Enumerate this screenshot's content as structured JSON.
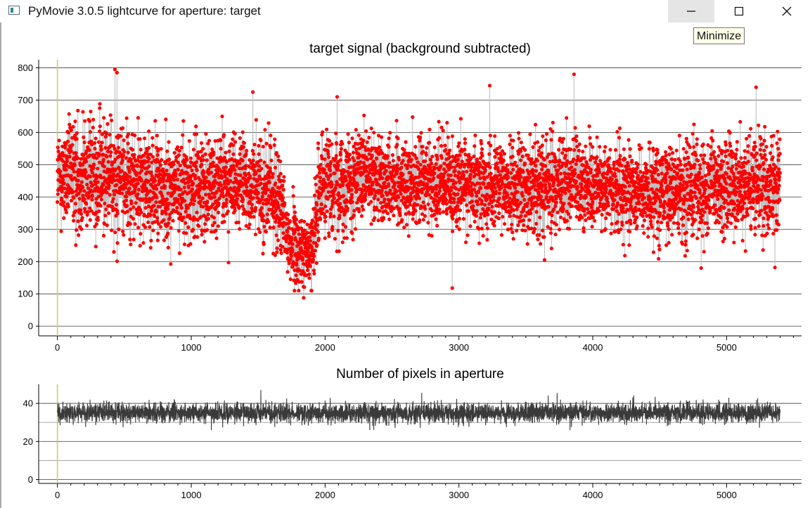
{
  "window": {
    "title": "PyMovie 3.0.5 lightcurve for aperture: target",
    "tooltip": "Minimize",
    "icons": [
      "app-icon",
      "minimize-icon",
      "maximize-icon",
      "close-icon"
    ]
  },
  "chart_data": [
    {
      "type": "scatter",
      "title": "target signal (background subtracted)",
      "xlabel": "",
      "ylabel": "",
      "xlim": [
        -140,
        5560
      ],
      "ylim": [
        -30,
        825
      ],
      "xticks": [
        0,
        1000,
        2000,
        3000,
        4000,
        5000
      ],
      "yticks": [
        0,
        100,
        200,
        300,
        400,
        500,
        600,
        700,
        800
      ],
      "grid": true,
      "n_points": 5400,
      "marker_color": "#ff0000",
      "line_color": "#bdbdbd",
      "profile": [
        [
          0,
          460,
          70
        ],
        [
          150,
          470,
          85
        ],
        [
          300,
          465,
          90
        ],
        [
          450,
          470,
          90
        ],
        [
          600,
          440,
          85
        ],
        [
          800,
          420,
          75
        ],
        [
          1000,
          430,
          75
        ],
        [
          1200,
          445,
          75
        ],
        [
          1400,
          440,
          70
        ],
        [
          1550,
          420,
          75
        ],
        [
          1650,
          400,
          85
        ],
        [
          1700,
          290,
          70
        ],
        [
          1800,
          225,
          55
        ],
        [
          1900,
          230,
          50
        ],
        [
          1950,
          430,
          75
        ],
        [
          2100,
          450,
          75
        ],
        [
          2400,
          460,
          70
        ],
        [
          2700,
          445,
          70
        ],
        [
          3000,
          445,
          70
        ],
        [
          3300,
          430,
          70
        ],
        [
          3600,
          435,
          70
        ],
        [
          3900,
          440,
          70
        ],
        [
          4200,
          430,
          70
        ],
        [
          4500,
          420,
          75
        ],
        [
          4800,
          425,
          75
        ],
        [
          5100,
          425,
          75
        ],
        [
          5400,
          445,
          75
        ]
      ],
      "outliers": [
        {
          "x": 430,
          "y": 795
        },
        {
          "x": 445,
          "y": 785
        },
        {
          "x": 1460,
          "y": 725
        },
        {
          "x": 2090,
          "y": 710
        },
        {
          "x": 3230,
          "y": 745
        },
        {
          "x": 3860,
          "y": 780
        },
        {
          "x": 5220,
          "y": 740
        },
        {
          "x": 1840,
          "y": 88
        },
        {
          "x": 2950,
          "y": 118
        },
        {
          "x": 3640,
          "y": 205
        },
        {
          "x": 4810,
          "y": 180
        }
      ],
      "vertical_marker_x": 0,
      "vertical_marker_color": "#cccc66"
    },
    {
      "type": "line",
      "title": "Number of pixels in aperture",
      "xlabel": "",
      "ylabel": "",
      "xlim": [
        -140,
        5560
      ],
      "ylim": [
        -2,
        50
      ],
      "xticks": [
        0,
        1000,
        2000,
        3000,
        4000,
        5000
      ],
      "yticks": [
        0,
        20,
        40
      ],
      "minor_y_gridlines": [
        10,
        30
      ],
      "grid": true,
      "n_points": 5400,
      "line_color": "#3a3a3a",
      "mean": 35,
      "spread": 2.6,
      "range": [
        26,
        47
      ],
      "vertical_marker_x": 0,
      "vertical_marker_color": "#cccc66"
    }
  ]
}
